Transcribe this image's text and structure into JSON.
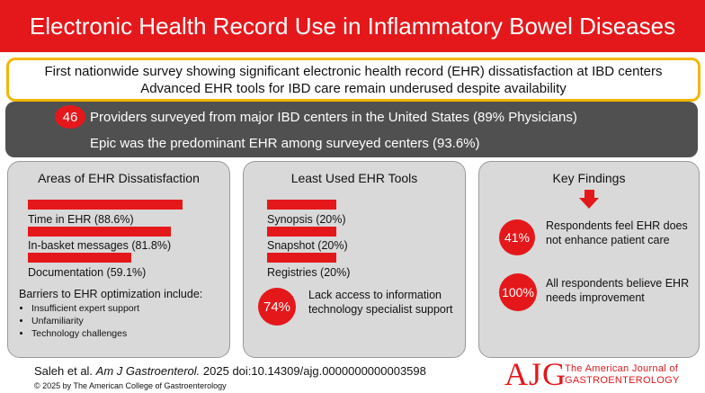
{
  "title": "Electronic Health Record Use in Inflammatory Bowel Diseases",
  "highlights": {
    "line1": "First nationwide survey showing significant electronic health record (EHR) dissatisfaction at IBD centers",
    "line2": "Advanced EHR tools for IBD care remain underused despite availability"
  },
  "survey": {
    "count": "46",
    "providers_text": "Providers surveyed from major IBD centers in the United States (89% Physicians)",
    "epic_text": "Epic was the predominant EHR among surveyed centers (93.6%)"
  },
  "dissatisfaction": {
    "title": "Areas of EHR Dissatisfaction",
    "items": [
      {
        "label": "Time in EHR (88.6%)",
        "value": 88.6
      },
      {
        "label": "In-basket messages (81.8%)",
        "value": 81.8
      },
      {
        "label": "Documentation (59.1%)",
        "value": 59.1
      }
    ],
    "barriers_title": "Barriers to EHR optimization include:",
    "barriers": [
      "Insufficient expert support",
      "Unfamiliarity",
      "Technology challenges"
    ]
  },
  "least_used": {
    "title": "Least Used EHR Tools",
    "items": [
      {
        "label": "Synopsis (20%)",
        "value": 20
      },
      {
        "label": "Snapshot (20%)",
        "value": 20
      },
      {
        "label": "Registries (20%)",
        "value": 20
      }
    ],
    "stat_value": "74%",
    "stat_text": "Lack access to information technology specialist support"
  },
  "key_findings": {
    "title": "Key Findings",
    "finding1_value": "41%",
    "finding1_text": "Respondents feel EHR does not enhance patient care",
    "finding2_value": "100%",
    "finding2_text": "All respondents believe EHR needs improvement"
  },
  "footer": {
    "citation_authors": "Saleh et al.",
    "citation_journal": "Am J Gastroenterol.",
    "citation_rest": "2025 doi:10.14309/ajg.0000000000003598",
    "copyright": "© 2025 by The American College of Gastroenterology",
    "logo_letters": "AJG",
    "logo_line1": "The American Journal of",
    "logo_line2": "GASTROENTEROLOGY"
  },
  "colors": {
    "brand_red": "#e4181b",
    "highlight_border": "#f2b705",
    "band_gray": "#505050",
    "panel_gray": "#d9d9d9"
  }
}
